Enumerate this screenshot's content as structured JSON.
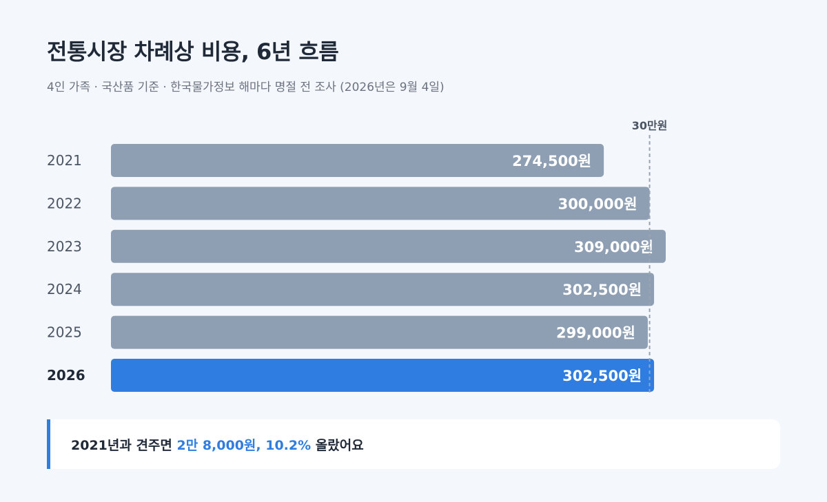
{
  "title": "전통시장 차례상 비용, 6년 흐름",
  "subtitle": "4인 가족 · 국산품 기준 · 한국물가정보 해마다 명절 전 조사 (2026년은 9월 4일)",
  "colors": {
    "normal_bar": "#8f9fb3",
    "highlight_bar": "#2f7de1",
    "reference_line": "#9aa4b2"
  },
  "chart_data": {
    "type": "bar",
    "orientation": "horizontal",
    "title": "전통시장 차례상 비용, 6년 흐름",
    "subtitle": "4인 가족 · 국산품 기준 · 한국물가정보 해마다 명절 전 조사 (2026년은 9월 4일)",
    "categories": [
      "2021",
      "2022",
      "2023",
      "2024",
      "2025",
      "2026"
    ],
    "values": [
      274500,
      300000,
      309000,
      302500,
      299000,
      302500
    ],
    "value_labels": [
      "274,500원",
      "300,000원",
      "309,000원",
      "302,500원",
      "299,000원",
      "302,500원"
    ],
    "highlight_category": "2026",
    "reference_line": {
      "value": 300000,
      "label": "30만원"
    },
    "xlim": [
      0,
      309000
    ],
    "grid": false,
    "legend": "none"
  },
  "callout": {
    "prefix": "2021년과 견주면 ",
    "highlight": "2만 8,000원, 10.2%",
    "suffix": " 올랐어요"
  }
}
